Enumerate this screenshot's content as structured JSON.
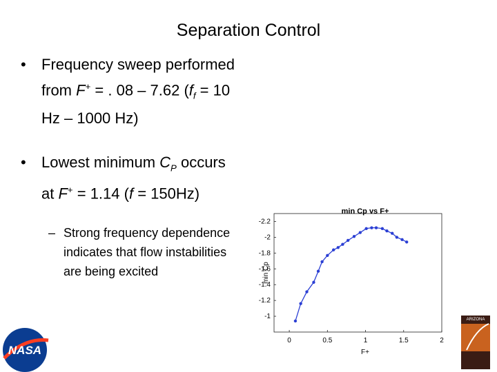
{
  "slide": {
    "title": "Separation Control",
    "bullets": [
      {
        "segments": [
          {
            "text": "Frequency sweep performed from "
          },
          {
            "text": "F",
            "style": "italic"
          },
          {
            "text": "+",
            "style": "sup"
          },
          {
            "text": " = . 08 – 7.62 ("
          },
          {
            "text": "f",
            "style": "italic"
          },
          {
            "text": "f",
            "style": "sub"
          },
          {
            "text": " = 10 Hz – 1000 Hz)"
          }
        ]
      },
      {
        "segments": [
          {
            "text": "Lowest minimum "
          },
          {
            "text": "C",
            "style": "italic"
          },
          {
            "text": "P",
            "style": "sub"
          },
          {
            "text": " occurs at "
          },
          {
            "text": "F",
            "style": "italic"
          },
          {
            "text": "+",
            "style": "sup"
          },
          {
            "text": " = 1.14 ("
          },
          {
            "text": "f",
            "style": "italic"
          },
          {
            "text": " = 150Hz)"
          }
        ]
      }
    ],
    "sub_bullets": [
      "Strong frequency dependence indicates that flow instabilities are being excited"
    ],
    "logos": {
      "left": "NASA",
      "right": "ARIZONA"
    }
  },
  "chart_data": {
    "type": "line",
    "title": "min Cp vs F+",
    "x_label": "F+",
    "y_label": "min Cp",
    "xlim": [
      -0.2,
      2
    ],
    "xticks": [
      0,
      0.5,
      1,
      1.5,
      2
    ],
    "ylim": [
      -0.8,
      -2.3
    ],
    "yticks": [
      -2.2,
      -2,
      -1.8,
      -1.6,
      -1.4,
      -1.2,
      -1
    ],
    "grid": false,
    "series": [
      {
        "color": "#2b3fd4",
        "x": [
          0.08,
          0.15,
          0.23,
          0.32,
          0.38,
          0.43,
          0.5,
          0.58,
          0.64,
          0.7,
          0.77,
          0.85,
          0.93,
          1.01,
          1.08,
          1.14,
          1.22,
          1.28,
          1.35,
          1.41,
          1.48,
          1.54
        ],
        "values": [
          -0.94,
          -1.16,
          -1.31,
          -1.43,
          -1.57,
          -1.69,
          -1.77,
          -1.84,
          -1.87,
          -1.91,
          -1.96,
          -2.01,
          -2.06,
          -2.11,
          -2.12,
          -2.12,
          -2.11,
          -2.08,
          -2.05,
          -2.0,
          -1.97,
          -1.94
        ]
      }
    ]
  }
}
